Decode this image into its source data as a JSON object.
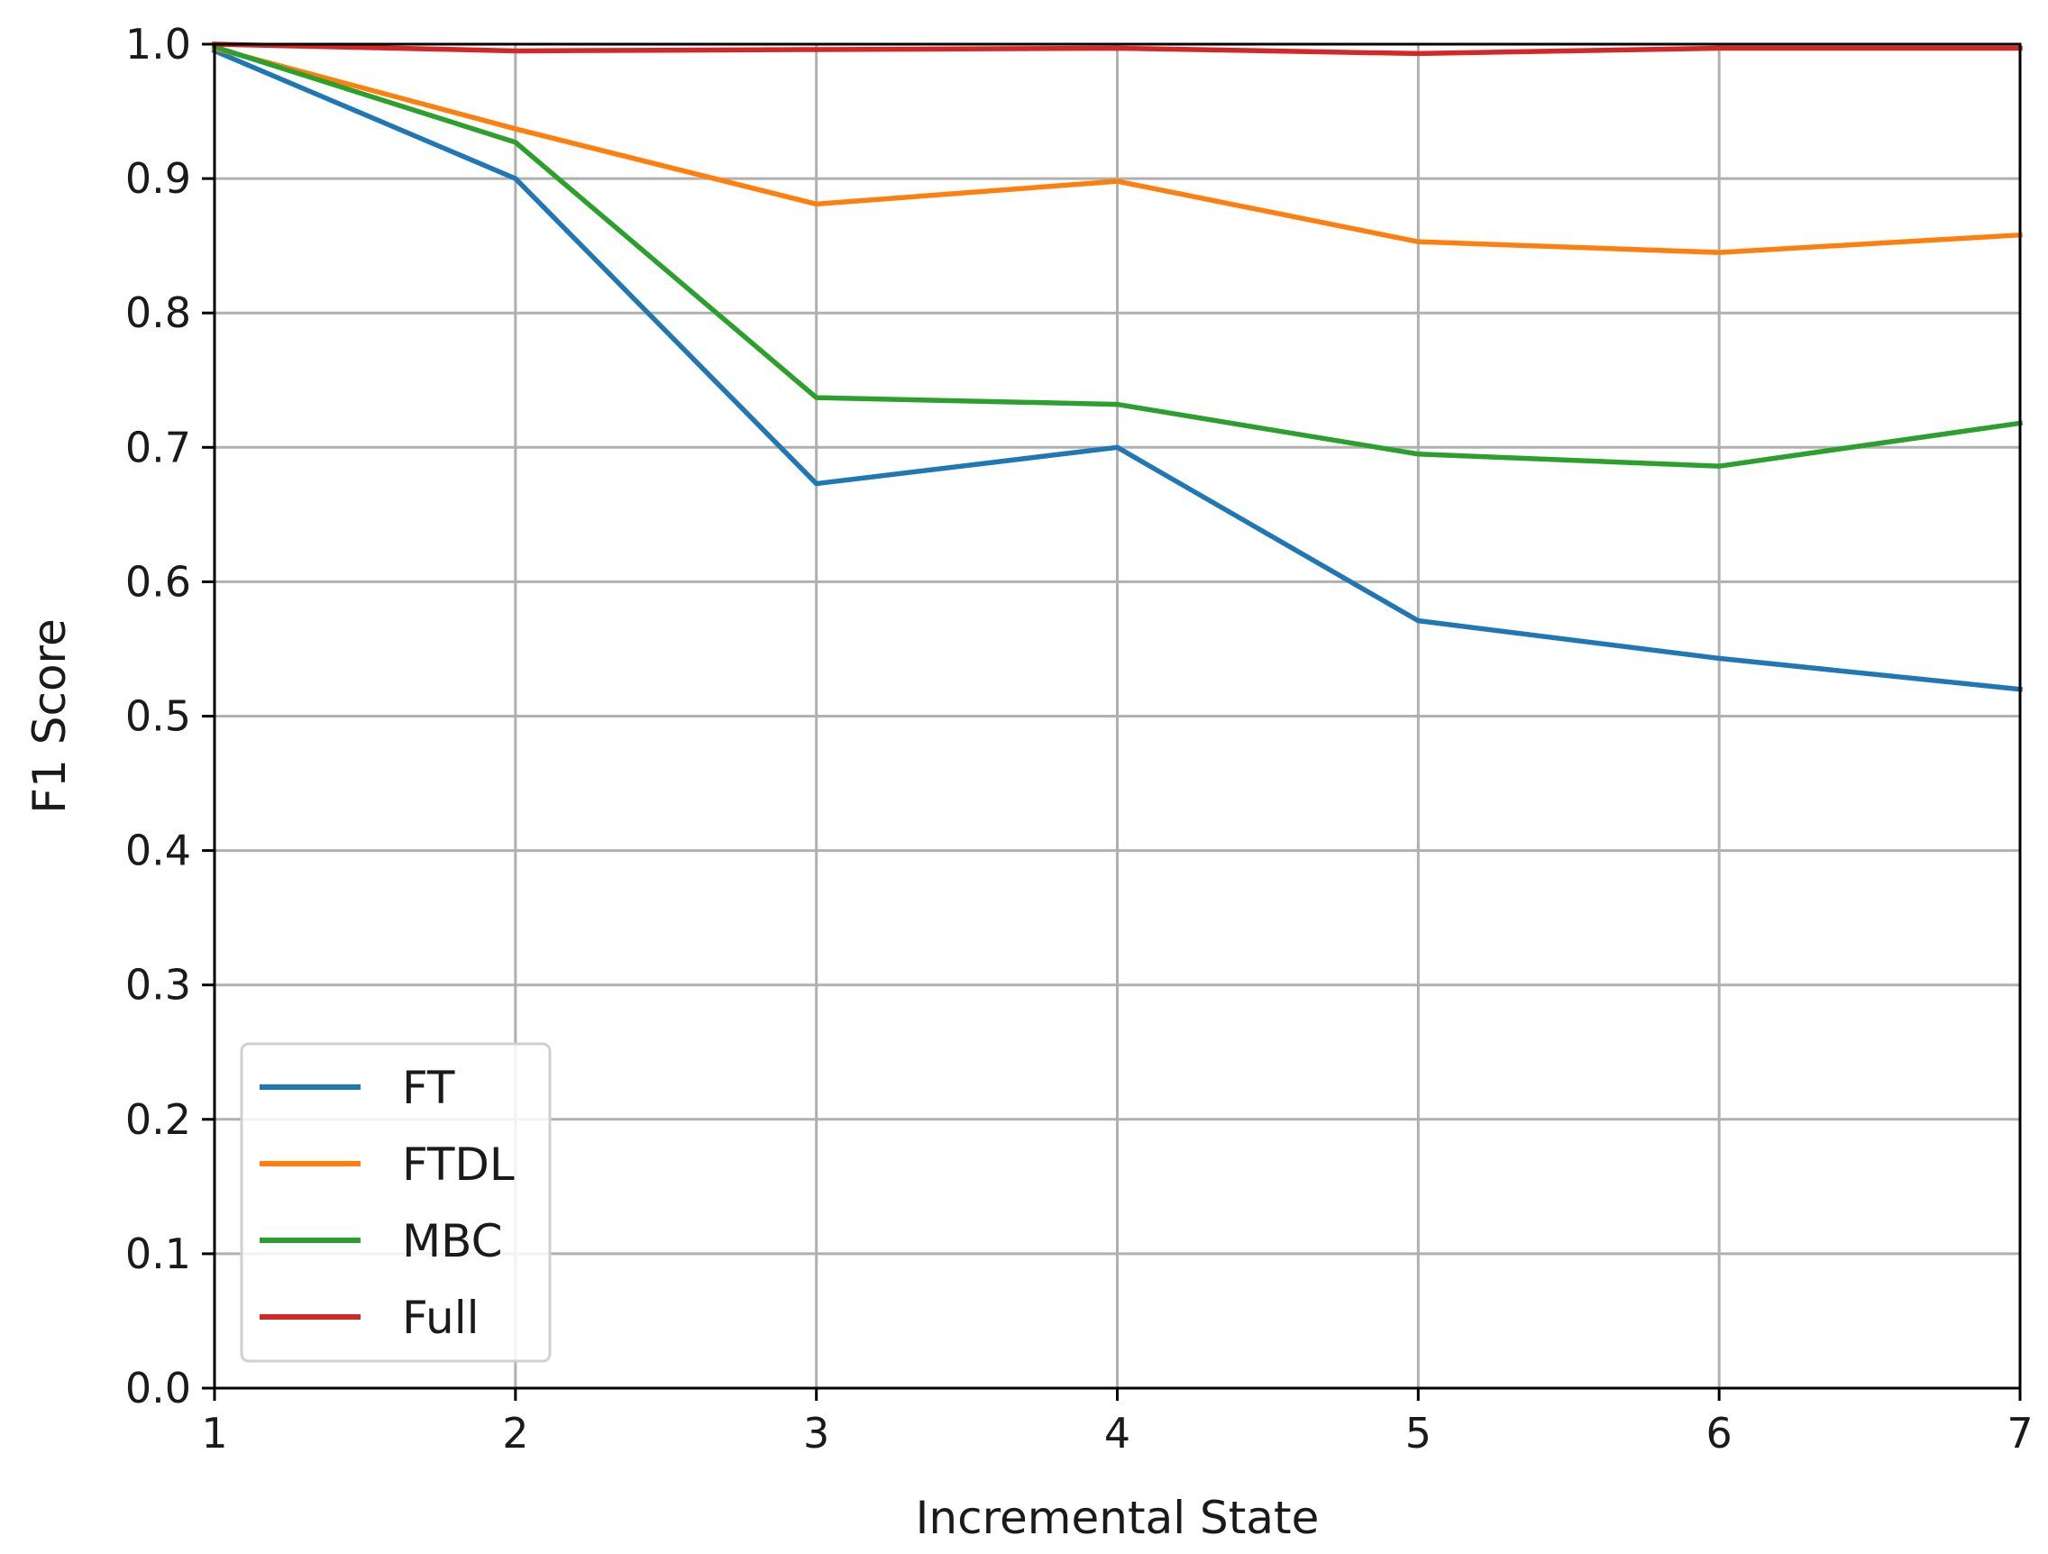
{
  "chart_data": {
    "type": "line",
    "title": "",
    "xlabel": "Incremental State",
    "ylabel": "F1 Score",
    "xlim": [
      1,
      7
    ],
    "ylim": [
      0.0,
      1.0
    ],
    "x": [
      1,
      2,
      3,
      4,
      5,
      6,
      7
    ],
    "xticks": [
      "1",
      "2",
      "3",
      "4",
      "5",
      "6",
      "7"
    ],
    "yticks": [
      "0.0",
      "0.1",
      "0.2",
      "0.3",
      "0.4",
      "0.5",
      "0.6",
      "0.7",
      "0.8",
      "0.9",
      "1.0"
    ],
    "grid": true,
    "legend_position": "lower-left",
    "series": [
      {
        "name": "FT",
        "color": "#1f77b4",
        "values": [
          0.995,
          0.9,
          0.673,
          0.7,
          0.571,
          0.543,
          0.52
        ]
      },
      {
        "name": "FTDL",
        "color": "#ff7f0e",
        "values": [
          0.997,
          0.937,
          0.881,
          0.898,
          0.853,
          0.845,
          0.858
        ]
      },
      {
        "name": "MBC",
        "color": "#2ca02c",
        "values": [
          0.998,
          0.927,
          0.737,
          0.732,
          0.695,
          0.686,
          0.718
        ]
      },
      {
        "name": "Full",
        "color": "#d62728",
        "values": [
          1.0,
          0.995,
          0.996,
          0.997,
          0.993,
          0.997,
          0.997
        ]
      }
    ]
  }
}
